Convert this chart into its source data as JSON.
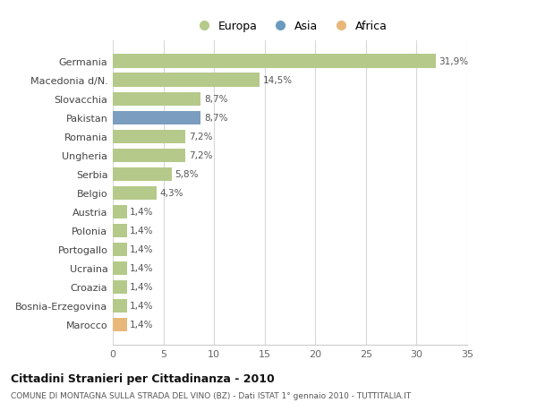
{
  "categories": [
    "Germania",
    "Macedonia d/N.",
    "Slovacchia",
    "Pakistan",
    "Romania",
    "Ungheria",
    "Serbia",
    "Belgio",
    "Austria",
    "Polonia",
    "Portogallo",
    "Ucraina",
    "Croazia",
    "Bosnia-Erzegovina",
    "Marocco"
  ],
  "values": [
    31.9,
    14.5,
    8.7,
    8.7,
    7.2,
    7.2,
    5.8,
    4.3,
    1.4,
    1.4,
    1.4,
    1.4,
    1.4,
    1.4,
    1.4
  ],
  "labels": [
    "31,9%",
    "14,5%",
    "8,7%",
    "8,7%",
    "7,2%",
    "7,2%",
    "5,8%",
    "4,3%",
    "1,4%",
    "1,4%",
    "1,4%",
    "1,4%",
    "1,4%",
    "1,4%",
    "1,4%"
  ],
  "continent": [
    "Europa",
    "Europa",
    "Europa",
    "Asia",
    "Europa",
    "Europa",
    "Europa",
    "Europa",
    "Europa",
    "Europa",
    "Europa",
    "Europa",
    "Europa",
    "Europa",
    "Africa"
  ],
  "colors": {
    "Europa": "#b5c98a",
    "Asia": "#7b9dbf",
    "Africa": "#e8b87a"
  },
  "legend_colors": {
    "Europa": "#b5c98a",
    "Asia": "#6a9abf",
    "Africa": "#e8b87a"
  },
  "title": "Cittadini Stranieri per Cittadinanza - 2010",
  "subtitle": "COMUNE DI MONTAGNA SULLA STRADA DEL VINO (BZ) - Dati ISTAT 1° gennaio 2010 - TUTTITALIA.IT",
  "xlim": [
    0,
    35
  ],
  "xticks": [
    0,
    5,
    10,
    15,
    20,
    25,
    30,
    35
  ],
  "background_color": "#ffffff",
  "grid_color": "#d8d8d8"
}
